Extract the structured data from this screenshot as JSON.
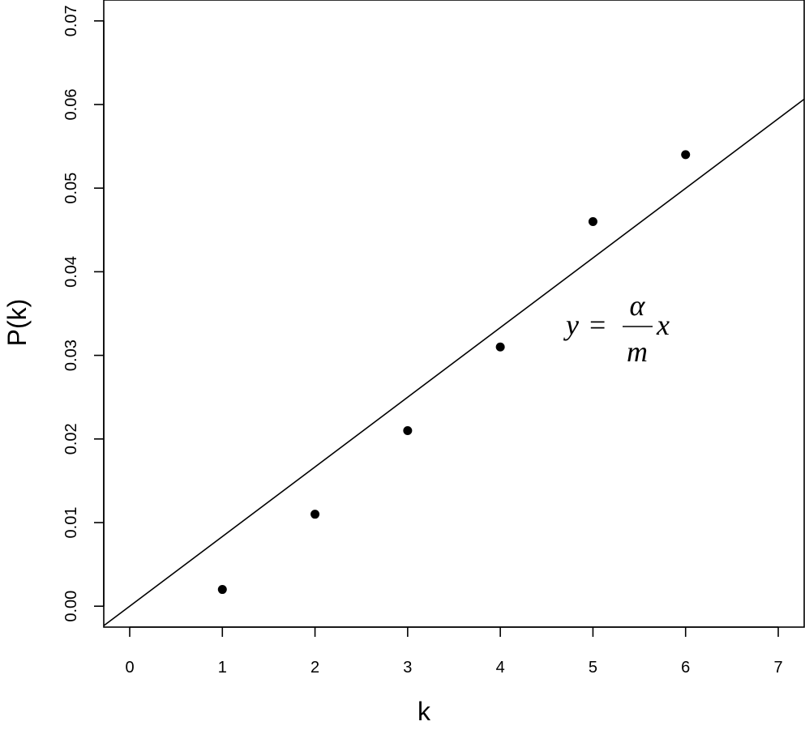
{
  "chart_data": {
    "type": "scatter",
    "title": "",
    "xlabel": "k",
    "ylabel": "P(k)",
    "xlim": [
      -0.28,
      7.28
    ],
    "ylim": [
      -0.0025,
      0.0725
    ],
    "x_ticks": [
      "0",
      "1",
      "2",
      "3",
      "4",
      "5",
      "6",
      "7"
    ],
    "y_ticks": [
      "0.00",
      "0.01",
      "0.02",
      "0.03",
      "0.04",
      "0.05",
      "0.06",
      "0.07"
    ],
    "grid": false,
    "points": {
      "x": [
        1,
        2,
        3,
        4,
        5,
        6
      ],
      "y": [
        0.002,
        0.011,
        0.021,
        0.031,
        0.046,
        0.054
      ]
    },
    "fit_line": {
      "slope": 0.00833,
      "intercept": 0
    },
    "annotation": {
      "lhs": "y",
      "equals": "=",
      "numerator": "α",
      "denominator": "m",
      "rhs": "x",
      "x": 5.3,
      "y": 0.0322
    },
    "colors": {
      "points": "#000000",
      "line": "#000000",
      "axes": "#000000"
    }
  }
}
